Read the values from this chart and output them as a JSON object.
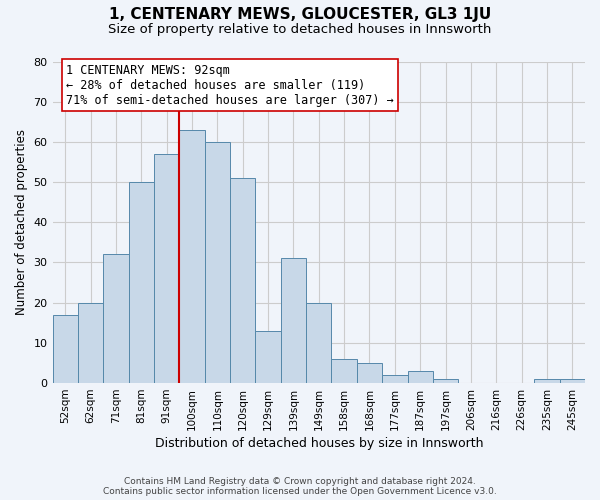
{
  "title": "1, CENTENARY MEWS, GLOUCESTER, GL3 1JU",
  "subtitle": "Size of property relative to detached houses in Innsworth",
  "xlabel": "Distribution of detached houses by size in Innsworth",
  "ylabel": "Number of detached properties",
  "footer_line1": "Contains HM Land Registry data © Crown copyright and database right 2024.",
  "footer_line2": "Contains public sector information licensed under the Open Government Licence v3.0.",
  "bar_labels": [
    "52sqm",
    "62sqm",
    "71sqm",
    "81sqm",
    "91sqm",
    "100sqm",
    "110sqm",
    "120sqm",
    "129sqm",
    "139sqm",
    "149sqm",
    "158sqm",
    "168sqm",
    "177sqm",
    "187sqm",
    "197sqm",
    "206sqm",
    "216sqm",
    "226sqm",
    "235sqm",
    "245sqm"
  ],
  "bar_values": [
    17,
    20,
    32,
    50,
    57,
    63,
    60,
    51,
    13,
    31,
    20,
    6,
    5,
    2,
    3,
    1,
    0,
    0,
    0,
    1,
    1
  ],
  "bar_color": "#c8d8e8",
  "bar_edge_color": "#5588aa",
  "vline_x_idx": 4,
  "vline_color": "#cc0000",
  "annotation_line1": "1 CENTENARY MEWS: 92sqm",
  "annotation_line2": "← 28% of detached houses are smaller (119)",
  "annotation_line3": "71% of semi-detached houses are larger (307) →",
  "annotation_box_edge": "#cc0000",
  "annotation_fontsize": 8.5,
  "ylim": [
    0,
    80
  ],
  "yticks": [
    0,
    10,
    20,
    30,
    40,
    50,
    60,
    70,
    80
  ],
  "grid_color": "#cccccc",
  "background_color": "#f0f4fa",
  "title_fontsize": 11,
  "subtitle_fontsize": 9.5
}
